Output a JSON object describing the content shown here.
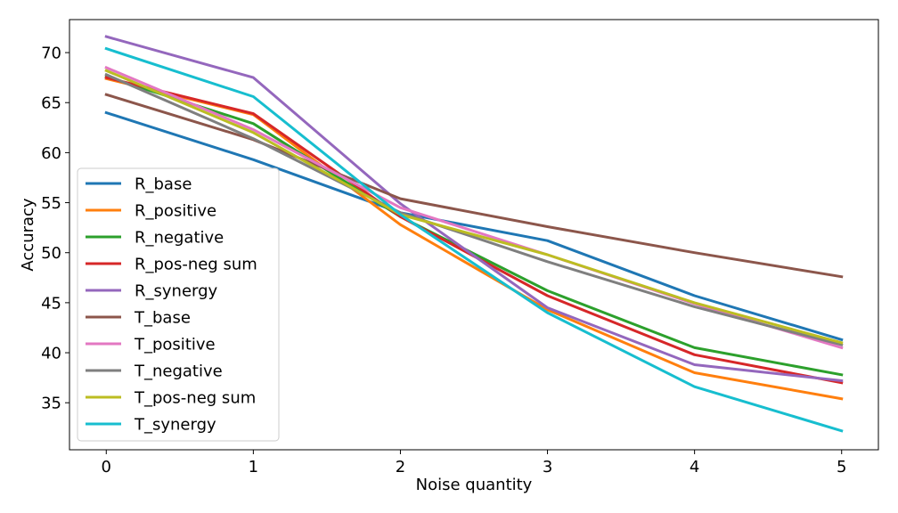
{
  "chart_data": {
    "type": "line",
    "title": "",
    "xlabel": "Noise quantity",
    "ylabel": "Accuracy",
    "x": [
      0,
      1,
      2,
      3,
      4,
      5
    ],
    "x_ticks": [
      "0",
      "1",
      "2",
      "3",
      "4",
      "5"
    ],
    "y_ticks": [
      "35",
      "40",
      "45",
      "50",
      "55",
      "60",
      "65",
      "70"
    ],
    "xlim": [
      -0.25,
      5.25
    ],
    "ylim": [
      30.3,
      73.3
    ],
    "grid": false,
    "legend_position": "lower-left",
    "series": [
      {
        "name": "R_base",
        "color": "#1f77b4",
        "values": [
          64.0,
          59.3,
          54.0,
          51.2,
          45.7,
          41.3
        ]
      },
      {
        "name": "R_positive",
        "color": "#ff7f0e",
        "values": [
          67.4,
          63.8,
          52.8,
          44.3,
          38.0,
          35.4
        ]
      },
      {
        "name": "R_negative",
        "color": "#2ca02c",
        "values": [
          67.6,
          62.9,
          53.6,
          46.2,
          40.5,
          37.8
        ]
      },
      {
        "name": "R_pos-neg sum",
        "color": "#d62728",
        "values": [
          67.5,
          63.9,
          53.6,
          45.7,
          39.8,
          37.0
        ]
      },
      {
        "name": "R_synergy",
        "color": "#9467bd",
        "values": [
          71.6,
          67.5,
          54.9,
          44.5,
          38.8,
          37.2
        ]
      },
      {
        "name": "T_base",
        "color": "#8c564b",
        "values": [
          65.8,
          61.3,
          55.4,
          52.6,
          50.0,
          47.6
        ]
      },
      {
        "name": "T_positive",
        "color": "#e377c2",
        "values": [
          68.5,
          62.3,
          54.5,
          49.8,
          44.9,
          40.5
        ]
      },
      {
        "name": "T_negative",
        "color": "#7f7f7f",
        "values": [
          67.8,
          61.4,
          54.0,
          49.1,
          44.6,
          40.8
        ]
      },
      {
        "name": "T_pos-neg sum",
        "color": "#bcbd22",
        "values": [
          68.2,
          62.0,
          53.8,
          49.8,
          45.0,
          41.0
        ]
      },
      {
        "name": "T_synergy",
        "color": "#17becf",
        "values": [
          70.4,
          65.6,
          53.8,
          44.0,
          36.6,
          32.2
        ]
      }
    ]
  }
}
